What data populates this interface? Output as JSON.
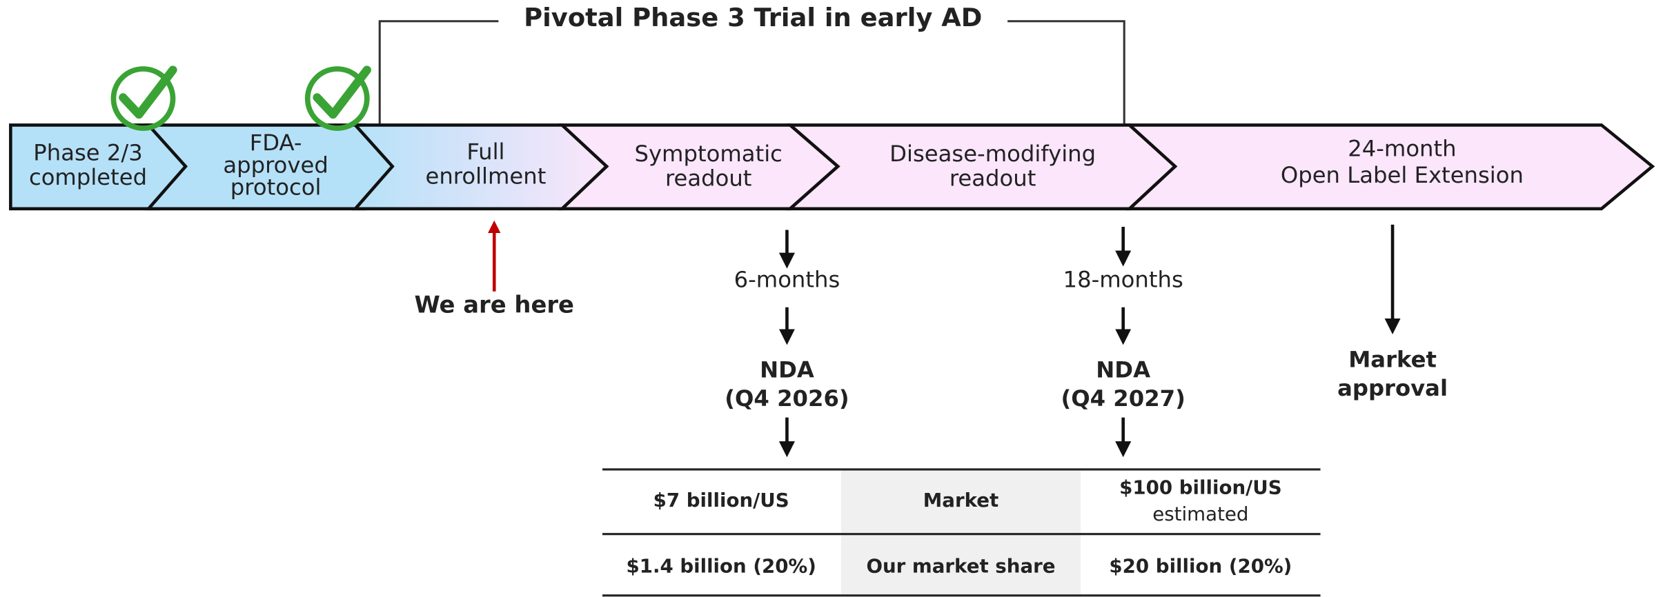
{
  "header": {
    "title": "Pivotal Phase 3 Trial in early AD"
  },
  "stages": [
    {
      "lines": [
        "Phase 2/3",
        "completed"
      ]
    },
    {
      "lines": [
        "FDA-",
        "approved",
        "protocol"
      ]
    },
    {
      "lines": [
        "Full",
        "enrollment"
      ]
    },
    {
      "lines": [
        "Symptomatic",
        "readout"
      ]
    },
    {
      "lines": [
        "Disease-modifying",
        "readout"
      ]
    },
    {
      "lines": [
        "24-month",
        "Open Label Extension"
      ]
    }
  ],
  "marker": "We are here",
  "milestones": [
    {
      "interval": "6-months",
      "event": [
        "NDA",
        "(Q4 2026)"
      ]
    },
    {
      "interval": "18-months",
      "event": [
        "NDA",
        "(Q4 2027)"
      ]
    },
    {
      "event": [
        "Market",
        "approval"
      ]
    }
  ],
  "table": {
    "rows": [
      [
        "$7 billion/US",
        "Market",
        [
          "$100 billion/US",
          "estimated"
        ]
      ],
      [
        "$1.4 billion (20%)",
        "Our market share",
        "$20 billion (20%)"
      ]
    ]
  }
}
